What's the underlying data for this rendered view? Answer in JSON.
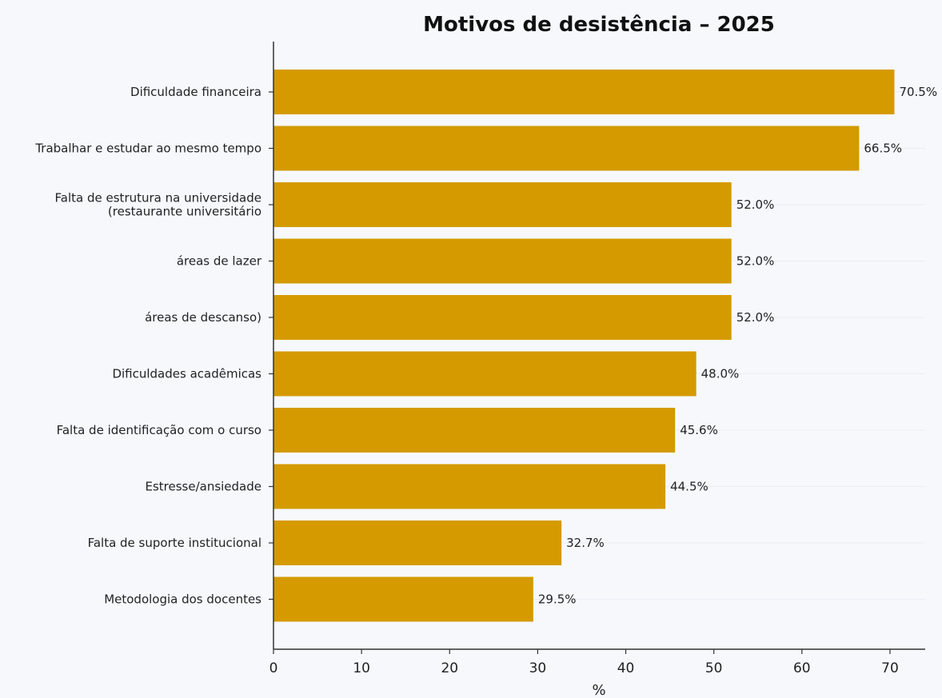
{
  "colors": {
    "background": "#f6f8fc",
    "bar": "#d49a00",
    "axis": "#333333",
    "grid": "#e9edf3",
    "text": "#222222"
  },
  "chart_data": {
    "type": "bar",
    "orientation": "horizontal",
    "title": "Motivos de desistência – 2025",
    "xlabel": "%",
    "ylabel": "",
    "xlim": [
      0,
      74
    ],
    "xticks": [
      0,
      10,
      20,
      30,
      40,
      50,
      60,
      70
    ],
    "grid": "faint horizontal",
    "categories": [
      [
        "Dificuldade financeira"
      ],
      [
        "Trabalhar e estudar ao mesmo tempo"
      ],
      [
        "Falta de estrutura na universidade",
        "(restaurante universitário"
      ],
      [
        "áreas de lazer"
      ],
      [
        "áreas de descanso)"
      ],
      [
        "Dificuldades acadêmicas"
      ],
      [
        "Falta de identificação com o curso"
      ],
      [
        "Estresse/ansiedade"
      ],
      [
        "Falta de suporte institucional"
      ],
      [
        "Metodologia dos docentes"
      ]
    ],
    "values": [
      70.5,
      66.5,
      52.0,
      52.0,
      52.0,
      48.0,
      45.6,
      44.5,
      32.7,
      29.5
    ],
    "value_labels": [
      "70.5%",
      "66.5%",
      "52.0%",
      "52.0%",
      "52.0%",
      "48.0%",
      "45.6%",
      "44.5%",
      "32.7%",
      "29.5%"
    ]
  }
}
